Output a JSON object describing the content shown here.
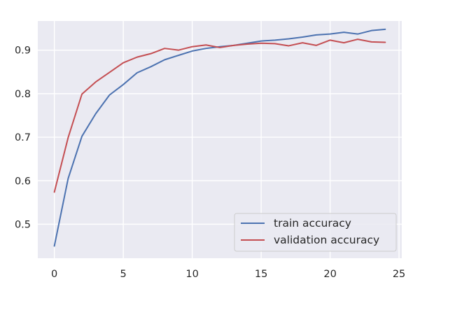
{
  "chart_data": {
    "type": "line",
    "x": [
      0,
      1,
      2,
      3,
      4,
      5,
      6,
      7,
      8,
      9,
      10,
      11,
      12,
      13,
      14,
      15,
      16,
      17,
      18,
      19,
      20,
      21,
      22,
      23,
      24
    ],
    "series": [
      {
        "name": "train accuracy",
        "color": "#4c72b0",
        "values": [
          0.45,
          0.605,
          0.702,
          0.754,
          0.797,
          0.821,
          0.848,
          0.862,
          0.878,
          0.888,
          0.898,
          0.904,
          0.908,
          0.911,
          0.916,
          0.921,
          0.923,
          0.926,
          0.93,
          0.935,
          0.937,
          0.941,
          0.937,
          0.945,
          0.948
        ]
      },
      {
        "name": "validation accuracy",
        "color": "#c44e52",
        "values": [
          0.574,
          0.699,
          0.799,
          0.827,
          0.849,
          0.871,
          0.884,
          0.892,
          0.904,
          0.9,
          0.908,
          0.912,
          0.906,
          0.911,
          0.914,
          0.916,
          0.915,
          0.91,
          0.917,
          0.911,
          0.923,
          0.917,
          0.925,
          0.919,
          0.918
        ]
      }
    ],
    "xlim": [
      -1.2,
      25.2
    ],
    "ylim": [
      0.422,
      0.967
    ],
    "xticks": [
      0,
      5,
      10,
      15,
      20,
      25
    ],
    "yticks": [
      0.5,
      0.6,
      0.7,
      0.8,
      0.9
    ],
    "xtick_labels": [
      "0",
      "5",
      "10",
      "15",
      "20",
      "25"
    ],
    "ytick_labels": [
      "0.5",
      "0.6",
      "0.7",
      "0.8",
      "0.9"
    ],
    "title": "",
    "xlabel": "",
    "ylabel": "",
    "grid": true,
    "legend_position": "lower-right",
    "background": "#eaeaf2"
  }
}
